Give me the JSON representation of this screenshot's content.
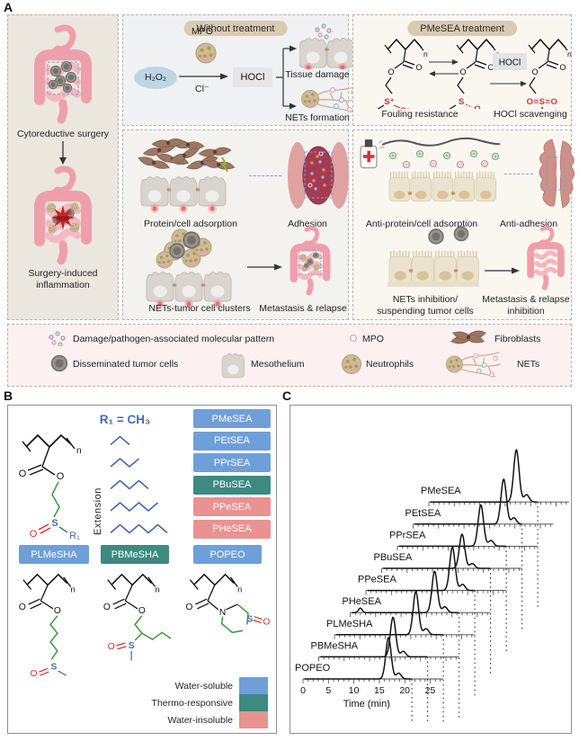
{
  "panelA": {
    "label": "A",
    "left": {
      "caption_top": "Cytoreductive surgery",
      "caption_bottom_1": "Surgery-induced",
      "caption_bottom_2": "inflammation",
      "ros_label": "ROS"
    },
    "without_treatment": {
      "badge": "Without treatment",
      "mpo_label": "MPO",
      "h2o2": "H₂O₂",
      "cl": "Cl⁻",
      "hocl": "HOCl",
      "tissue_damage": "Tissue damage",
      "nets_formation": "NETs formation",
      "row1_left": "Protein/cell adsorption",
      "row1_right": "Adhesion",
      "row2_left": "NETs-tumor cell clusters",
      "row2_right": "Metastasis & relapse"
    },
    "pmesea_treatment": {
      "badge": "PMeSEA treatment",
      "hocl": "HOCl",
      "fouling": "Fouling resistance",
      "scavenging": "HOCl scavenging",
      "atoms": {
        "n": "n",
        "o": "O",
        "s_plus": "S⁺",
        "o_minus": "O⁻",
        "s": "S",
        "sulfone": "O=S=O"
      },
      "row1_left": "Anti-protein/cell adsorption",
      "row1_right": "Anti-adhesion",
      "row2_left_1": "NETs inhibition/",
      "row2_left_2": "suspending tumor cells",
      "row2_right_1": "Metastasis & relapse",
      "row2_right_2": "inhibition"
    },
    "legend": {
      "items": [
        {
          "icon": "damp-icon",
          "label": "Damage/pathogen-associated molecular pattern"
        },
        {
          "icon": "mpo-icon",
          "label": "MPO"
        },
        {
          "icon": "fibroblasts-icon",
          "label": "Fibroblasts"
        },
        {
          "icon": "disseminated-tumor-cells-icon",
          "label": "Disseminated tumor cells"
        },
        {
          "icon": "mesothelium-icon",
          "label": "Mesothelium"
        },
        {
          "icon": "neutrophils-icon",
          "label": "Neutrophils"
        },
        {
          "icon": "nets-icon",
          "label": "NETs"
        }
      ]
    }
  },
  "panelB": {
    "label": "B",
    "r1_equation": "R₁ = CH₃",
    "extension_label": "Extension",
    "right_boxes": [
      {
        "label": "PMeSEA",
        "type": "water-soluble"
      },
      {
        "label": "PEtSEA",
        "type": "water-soluble"
      },
      {
        "label": "PPrSEA",
        "type": "water-soluble"
      },
      {
        "label": "PBuSEA",
        "type": "thermo-responsive"
      },
      {
        "label": "PPeSEA",
        "type": "water-insoluble"
      },
      {
        "label": "PHeSEA",
        "type": "water-insoluble"
      }
    ],
    "bottom_boxes": [
      {
        "label": "PLMeSHA",
        "type": "water-soluble"
      },
      {
        "label": "PBMeSHA",
        "type": "thermo-responsive"
      },
      {
        "label": "POPEO",
        "type": "water-soluble"
      }
    ],
    "solubility_legend": [
      {
        "label": "Water-soluble",
        "color": "#6f9fd8"
      },
      {
        "label": "Thermo-responsive",
        "color": "#3d8a80"
      },
      {
        "label": "Water-insoluble",
        "color": "#ea9191"
      }
    ],
    "type_colors": {
      "water-soluble": "#6f9fd8",
      "thermo-responsive": "#3d8a80",
      "water-insoluble": "#ea9191"
    },
    "atoms": {
      "o": "O",
      "s": "S",
      "n_atom": "N",
      "sub_n": "n",
      "r1": "R₁"
    }
  },
  "panelC": {
    "label": "C"
  },
  "chart_data": {
    "type": "line",
    "subtype": "stacked-offset GPC elution traces (waterfall)",
    "title": "",
    "xlabel": "Time (min)",
    "x_ticks": [
      0,
      5,
      10,
      15,
      20,
      25
    ],
    "x_range": [
      0,
      27.5
    ],
    "grid": false,
    "legend_position": "labels above each trace, top-to-bottom",
    "series": [
      {
        "name": "PMeSEA",
        "peak_min": 17.2,
        "peak_height": 58
      },
      {
        "name": "PEtSEA",
        "peak_min": 17.8,
        "peak_height": 50
      },
      {
        "name": "PPrSEA",
        "peak_min": 16.4,
        "peak_height": 46
      },
      {
        "name": "PBuSEA",
        "peak_min": 15.8,
        "peak_height": 38
      },
      {
        "name": "PPeSEA",
        "peak_min": 17.0,
        "peak_height": 48
      },
      {
        "name": "PHeSEA",
        "peak_min": 16.6,
        "peak_height": 46,
        "minor_peak_min": 2.0,
        "minor_peak_height": 5
      },
      {
        "name": "PLMeSHA",
        "peak_min": 16.0,
        "peak_height": 48
      },
      {
        "name": "PBMeSHA",
        "peak_min": 14.6,
        "peak_height": 44
      },
      {
        "name": "POPEO",
        "peak_min": 16.8,
        "peak_height": 46
      }
    ],
    "dotted_drop_min": 21.4
  }
}
